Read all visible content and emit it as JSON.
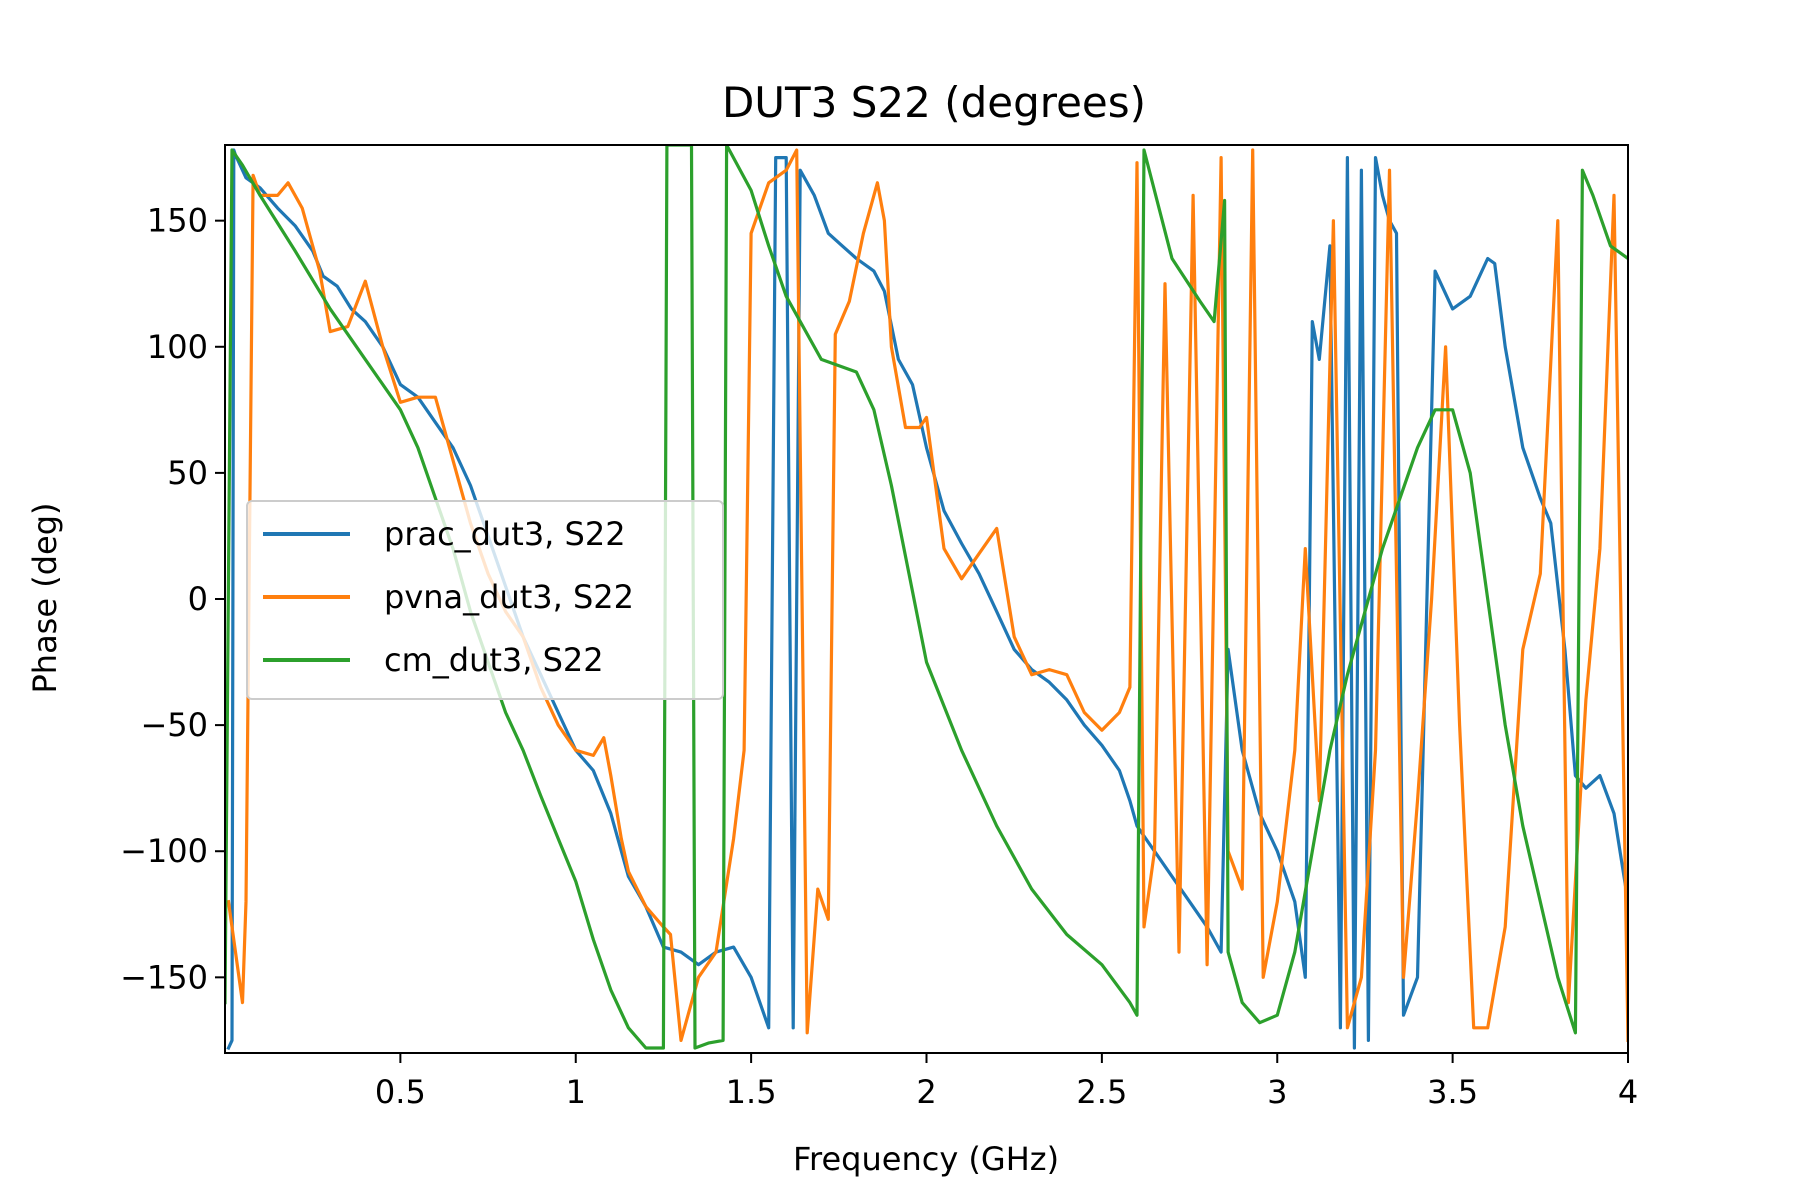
{
  "chart_data": {
    "type": "line",
    "title": "DUT3 S22 (degrees)",
    "xlabel": "Frequency (GHz)",
    "ylabel": "Phase (deg)",
    "xlim": [
      0,
      4
    ],
    "ylim": [
      -180,
      180
    ],
    "x_ticks": [
      0.5,
      1,
      1.5,
      2,
      2.5,
      3,
      3.5,
      4
    ],
    "x_tick_labels": [
      "0.5",
      "1",
      "1.5",
      "2",
      "2.5",
      "3",
      "3.5",
      "4"
    ],
    "y_ticks": [
      150,
      100,
      50,
      0,
      -50,
      -100,
      -150
    ],
    "y_tick_labels": [
      "150",
      "100",
      "50",
      "0",
      "−50",
      "−100",
      "−150"
    ],
    "grid": false,
    "legend_position": "center-left",
    "series": [
      {
        "name": "prac_dut3, S22",
        "color": "#1f77b4",
        "points": [
          [
            0.01,
            -178
          ],
          [
            0.02,
            -175
          ],
          [
            0.025,
            178
          ],
          [
            0.03,
            176
          ],
          [
            0.06,
            167
          ],
          [
            0.1,
            163
          ],
          [
            0.15,
            155
          ],
          [
            0.2,
            148
          ],
          [
            0.25,
            138
          ],
          [
            0.28,
            128
          ],
          [
            0.32,
            124
          ],
          [
            0.36,
            115
          ],
          [
            0.4,
            110
          ],
          [
            0.45,
            100
          ],
          [
            0.5,
            85
          ],
          [
            0.55,
            80
          ],
          [
            0.6,
            70
          ],
          [
            0.65,
            60
          ],
          [
            0.7,
            45
          ],
          [
            0.75,
            25
          ],
          [
            0.8,
            5
          ],
          [
            0.85,
            -15
          ],
          [
            0.9,
            -30
          ],
          [
            0.95,
            -45
          ],
          [
            1.0,
            -60
          ],
          [
            1.05,
            -68
          ],
          [
            1.1,
            -85
          ],
          [
            1.15,
            -110
          ],
          [
            1.2,
            -122
          ],
          [
            1.25,
            -138
          ],
          [
            1.3,
            -140
          ],
          [
            1.35,
            -145
          ],
          [
            1.4,
            -140
          ],
          [
            1.45,
            -138
          ],
          [
            1.5,
            -150
          ],
          [
            1.55,
            -170
          ],
          [
            1.57,
            175
          ],
          [
            1.6,
            175
          ],
          [
            1.62,
            -170
          ],
          [
            1.64,
            170
          ],
          [
            1.68,
            160
          ],
          [
            1.72,
            145
          ],
          [
            1.76,
            140
          ],
          [
            1.8,
            135
          ],
          [
            1.85,
            130
          ],
          [
            1.88,
            122
          ],
          [
            1.92,
            95
          ],
          [
            1.96,
            85
          ],
          [
            2.0,
            60
          ],
          [
            2.05,
            35
          ],
          [
            2.1,
            22
          ],
          [
            2.15,
            10
          ],
          [
            2.2,
            -5
          ],
          [
            2.25,
            -20
          ],
          [
            2.3,
            -28
          ],
          [
            2.35,
            -33
          ],
          [
            2.4,
            -40
          ],
          [
            2.45,
            -50
          ],
          [
            2.5,
            -58
          ],
          [
            2.55,
            -68
          ],
          [
            2.58,
            -80
          ],
          [
            2.6,
            -90
          ],
          [
            2.65,
            -100
          ],
          [
            2.7,
            -110
          ],
          [
            2.75,
            -120
          ],
          [
            2.8,
            -130
          ],
          [
            2.84,
            -140
          ],
          [
            2.86,
            -20
          ],
          [
            2.9,
            -60
          ],
          [
            2.95,
            -85
          ],
          [
            3.0,
            -100
          ],
          [
            3.05,
            -120
          ],
          [
            3.08,
            -150
          ],
          [
            3.1,
            110
          ],
          [
            3.12,
            95
          ],
          [
            3.15,
            140
          ],
          [
            3.18,
            -170
          ],
          [
            3.2,
            175
          ],
          [
            3.22,
            -178
          ],
          [
            3.24,
            170
          ],
          [
            3.26,
            -175
          ],
          [
            3.28,
            175
          ],
          [
            3.3,
            160
          ],
          [
            3.32,
            150
          ],
          [
            3.34,
            145
          ],
          [
            3.36,
            -165
          ],
          [
            3.4,
            -150
          ],
          [
            3.45,
            130
          ],
          [
            3.5,
            115
          ],
          [
            3.55,
            120
          ],
          [
            3.6,
            135
          ],
          [
            3.62,
            133
          ],
          [
            3.65,
            100
          ],
          [
            3.7,
            60
          ],
          [
            3.75,
            40
          ],
          [
            3.78,
            30
          ],
          [
            3.82,
            -20
          ],
          [
            3.85,
            -70
          ],
          [
            3.88,
            -75
          ],
          [
            3.92,
            -70
          ],
          [
            3.96,
            -85
          ],
          [
            4.0,
            -120
          ]
        ]
      },
      {
        "name": "pvna_dut3, S22",
        "color": "#ff7f0e",
        "points": [
          [
            0.01,
            -120
          ],
          [
            0.03,
            -140
          ],
          [
            0.05,
            -160
          ],
          [
            0.06,
            -120
          ],
          [
            0.08,
            168
          ],
          [
            0.1,
            160
          ],
          [
            0.15,
            160
          ],
          [
            0.18,
            165
          ],
          [
            0.22,
            155
          ],
          [
            0.27,
            130
          ],
          [
            0.3,
            106
          ],
          [
            0.35,
            108
          ],
          [
            0.4,
            126
          ],
          [
            0.45,
            100
          ],
          [
            0.5,
            78
          ],
          [
            0.55,
            80
          ],
          [
            0.6,
            80
          ],
          [
            0.65,
            55
          ],
          [
            0.7,
            30
          ],
          [
            0.75,
            10
          ],
          [
            0.8,
            -5
          ],
          [
            0.85,
            -15
          ],
          [
            0.9,
            -35
          ],
          [
            0.95,
            -50
          ],
          [
            1.0,
            -60
          ],
          [
            1.05,
            -62
          ],
          [
            1.08,
            -55
          ],
          [
            1.1,
            -70
          ],
          [
            1.13,
            -95
          ],
          [
            1.15,
            -108
          ],
          [
            1.2,
            -122
          ],
          [
            1.25,
            -130
          ],
          [
            1.27,
            -133
          ],
          [
            1.3,
            -175
          ],
          [
            1.35,
            -150
          ],
          [
            1.4,
            -140
          ],
          [
            1.45,
            -95
          ],
          [
            1.48,
            -60
          ],
          [
            1.5,
            145
          ],
          [
            1.55,
            165
          ],
          [
            1.6,
            170
          ],
          [
            1.63,
            178
          ],
          [
            1.66,
            -172
          ],
          [
            1.69,
            -115
          ],
          [
            1.72,
            -127
          ],
          [
            1.74,
            105
          ],
          [
            1.78,
            118
          ],
          [
            1.82,
            145
          ],
          [
            1.86,
            165
          ],
          [
            1.88,
            150
          ],
          [
            1.9,
            100
          ],
          [
            1.94,
            68
          ],
          [
            1.98,
            68
          ],
          [
            2.0,
            72
          ],
          [
            2.05,
            20
          ],
          [
            2.1,
            8
          ],
          [
            2.15,
            18
          ],
          [
            2.2,
            28
          ],
          [
            2.25,
            -15
          ],
          [
            2.3,
            -30
          ],
          [
            2.35,
            -28
          ],
          [
            2.4,
            -30
          ],
          [
            2.45,
            -45
          ],
          [
            2.5,
            -52
          ],
          [
            2.55,
            -45
          ],
          [
            2.58,
            -35
          ],
          [
            2.6,
            173
          ],
          [
            2.62,
            -130
          ],
          [
            2.65,
            -100
          ],
          [
            2.68,
            125
          ],
          [
            2.72,
            -140
          ],
          [
            2.76,
            160
          ],
          [
            2.8,
            -145
          ],
          [
            2.84,
            175
          ],
          [
            2.86,
            -100
          ],
          [
            2.9,
            -115
          ],
          [
            2.93,
            178
          ],
          [
            2.96,
            -150
          ],
          [
            3.0,
            -120
          ],
          [
            3.05,
            -60
          ],
          [
            3.08,
            20
          ],
          [
            3.12,
            -80
          ],
          [
            3.16,
            150
          ],
          [
            3.2,
            -170
          ],
          [
            3.24,
            -150
          ],
          [
            3.28,
            -60
          ],
          [
            3.32,
            170
          ],
          [
            3.36,
            -150
          ],
          [
            3.4,
            -80
          ],
          [
            3.44,
            0
          ],
          [
            3.48,
            100
          ],
          [
            3.52,
            -50
          ],
          [
            3.56,
            -170
          ],
          [
            3.6,
            -170
          ],
          [
            3.65,
            -130
          ],
          [
            3.7,
            -20
          ],
          [
            3.75,
            10
          ],
          [
            3.8,
            150
          ],
          [
            3.83,
            -160
          ],
          [
            3.88,
            -40
          ],
          [
            3.92,
            20
          ],
          [
            3.96,
            160
          ],
          [
            4.0,
            -175
          ]
        ]
      },
      {
        "name": "cm_dut3, S22",
        "color": "#2ca02c",
        "points": [
          [
            0.0,
            -160
          ],
          [
            0.02,
            178
          ],
          [
            0.05,
            172
          ],
          [
            0.1,
            160
          ],
          [
            0.2,
            138
          ],
          [
            0.3,
            115
          ],
          [
            0.4,
            95
          ],
          [
            0.5,
            75
          ],
          [
            0.55,
            60
          ],
          [
            0.6,
            40
          ],
          [
            0.65,
            20
          ],
          [
            0.7,
            -5
          ],
          [
            0.75,
            -25
          ],
          [
            0.8,
            -45
          ],
          [
            0.85,
            -60
          ],
          [
            0.9,
            -78
          ],
          [
            0.95,
            -95
          ],
          [
            1.0,
            -112
          ],
          [
            1.05,
            -135
          ],
          [
            1.1,
            -155
          ],
          [
            1.15,
            -170
          ],
          [
            1.2,
            -178
          ],
          [
            1.25,
            -178
          ],
          [
            1.26,
            180
          ],
          [
            1.33,
            180
          ],
          [
            1.34,
            -178
          ],
          [
            1.38,
            -176
          ],
          [
            1.42,
            -175
          ],
          [
            1.43,
            180
          ],
          [
            1.5,
            162
          ],
          [
            1.55,
            140
          ],
          [
            1.6,
            120
          ],
          [
            1.7,
            95
          ],
          [
            1.8,
            90
          ],
          [
            1.85,
            75
          ],
          [
            1.9,
            45
          ],
          [
            1.95,
            10
          ],
          [
            2.0,
            -25
          ],
          [
            2.1,
            -60
          ],
          [
            2.2,
            -90
          ],
          [
            2.3,
            -115
          ],
          [
            2.4,
            -133
          ],
          [
            2.5,
            -145
          ],
          [
            2.58,
            -160
          ],
          [
            2.6,
            -165
          ],
          [
            2.62,
            178
          ],
          [
            2.7,
            135
          ],
          [
            2.78,
            118
          ],
          [
            2.82,
            110
          ],
          [
            2.85,
            158
          ],
          [
            2.86,
            -140
          ],
          [
            2.9,
            -160
          ],
          [
            2.95,
            -168
          ],
          [
            3.0,
            -165
          ],
          [
            3.05,
            -140
          ],
          [
            3.1,
            -100
          ],
          [
            3.15,
            -60
          ],
          [
            3.2,
            -30
          ],
          [
            3.3,
            20
          ],
          [
            3.4,
            60
          ],
          [
            3.45,
            75
          ],
          [
            3.5,
            75
          ],
          [
            3.55,
            50
          ],
          [
            3.6,
            0
          ],
          [
            3.65,
            -50
          ],
          [
            3.7,
            -90
          ],
          [
            3.75,
            -120
          ],
          [
            3.8,
            -150
          ],
          [
            3.85,
            -172
          ],
          [
            3.87,
            170
          ],
          [
            3.9,
            160
          ],
          [
            3.95,
            140
          ],
          [
            4.0,
            135
          ]
        ]
      }
    ]
  }
}
